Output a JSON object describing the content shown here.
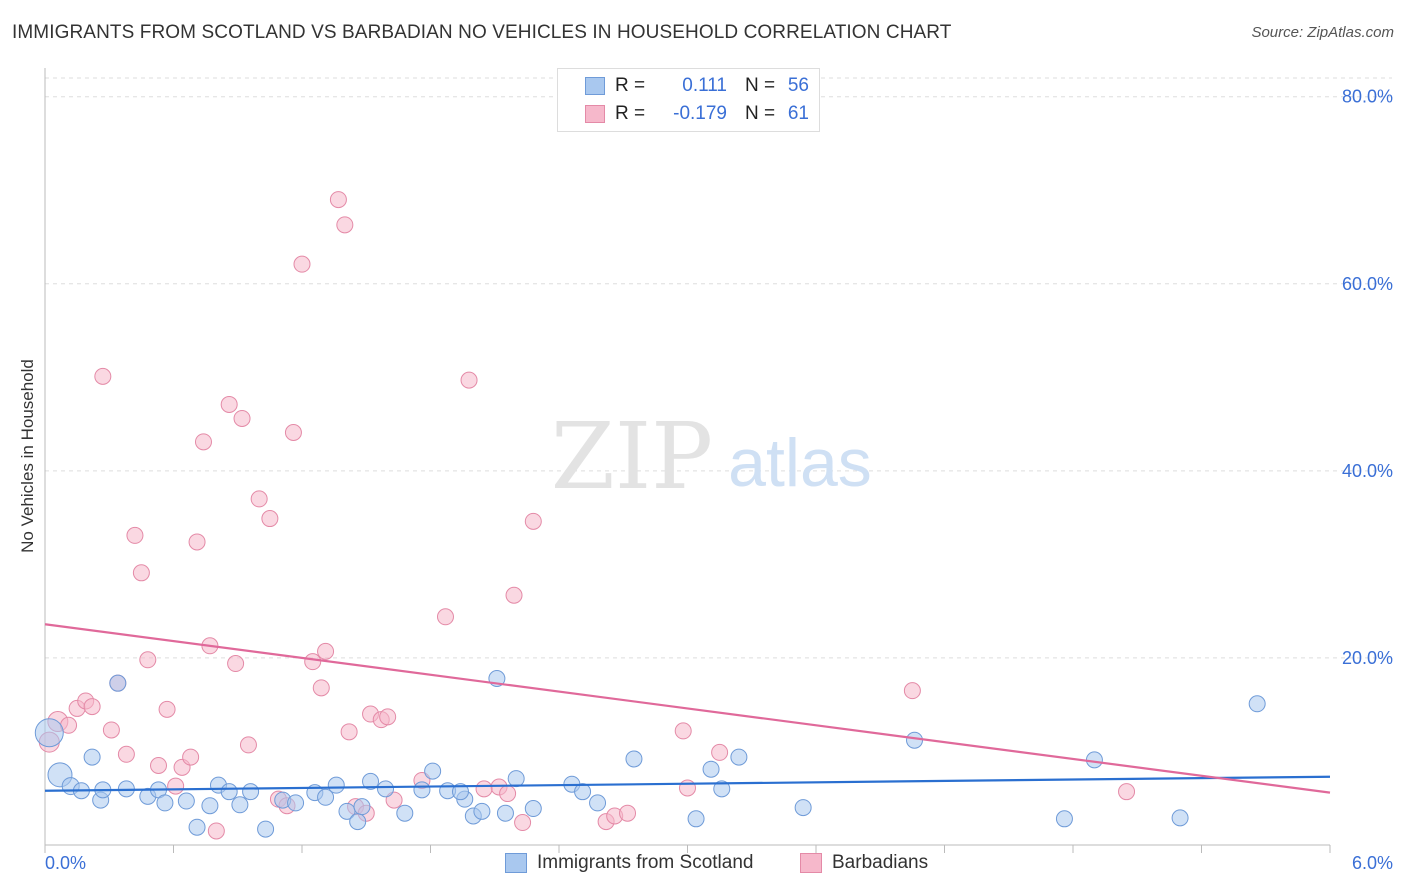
{
  "title": "IMMIGRANTS FROM SCOTLAND VS BARBADIAN NO VEHICLES IN HOUSEHOLD CORRELATION CHART",
  "source": "Source: ZipAtlas.com",
  "watermark": {
    "zip": "ZIP",
    "atlas": "atlas"
  },
  "legend_top": [
    {
      "r_label": "R =",
      "r_value": "0.111",
      "n_label": "N =",
      "n_value": "56"
    },
    {
      "r_label": "R =",
      "r_value": "-0.179",
      "n_label": "N =",
      "n_value": "61"
    }
  ],
  "legend_bottom": [
    "Immigrants from Scotland",
    "Barbadians"
  ],
  "colors": {
    "blue_fill": "#a9c8ef",
    "blue_stroke": "#6f9bd8",
    "blue_line": "#2a6fd0",
    "pink_fill": "#f6b8cb",
    "pink_stroke": "#e48aa7",
    "pink_line": "#e0699a",
    "tick_text": "#3a6fd6",
    "grid": "#dddddd"
  },
  "chart_data": {
    "type": "scatter",
    "title": "IMMIGRANTS FROM SCOTLAND VS BARBADIAN NO VEHICLES IN HOUSEHOLD CORRELATION CHART",
    "xlabel": "",
    "ylabel": "No Vehicles in Household",
    "xlim": [
      0,
      6.0
    ],
    "ylim": [
      0,
      82
    ],
    "x_tick_labels": [
      "0.0%",
      "6.0%"
    ],
    "y_ticks": [
      20,
      40,
      60,
      80
    ],
    "y_tick_labels": [
      "20.0%",
      "40.0%",
      "60.0%",
      "80.0%"
    ],
    "series": [
      {
        "name": "Immigrants from Scotland",
        "color": "blue",
        "trend": [
          [
            0,
            5.8
          ],
          [
            6.0,
            7.3
          ]
        ],
        "points": [
          [
            0.02,
            12.0,
            24
          ],
          [
            0.07,
            7.5,
            20
          ],
          [
            0.12,
            6.3,
            13
          ],
          [
            0.17,
            5.8,
            12
          ],
          [
            0.22,
            9.4,
            12
          ],
          [
            0.26,
            4.8,
            12
          ],
          [
            0.27,
            5.9,
            12
          ],
          [
            0.38,
            6.0,
            12
          ],
          [
            0.34,
            17.3,
            12
          ],
          [
            0.48,
            5.2,
            12
          ],
          [
            0.53,
            5.9,
            12
          ],
          [
            0.56,
            4.5,
            12
          ],
          [
            0.66,
            4.7,
            12
          ],
          [
            0.71,
            1.9,
            12
          ],
          [
            0.77,
            4.2,
            12
          ],
          [
            0.81,
            6.4,
            12
          ],
          [
            0.86,
            5.7,
            12
          ],
          [
            0.91,
            4.3,
            12
          ],
          [
            0.96,
            5.7,
            12
          ],
          [
            1.03,
            1.7,
            12
          ],
          [
            1.11,
            4.8,
            12
          ],
          [
            1.17,
            4.5,
            12
          ],
          [
            1.26,
            5.6,
            12
          ],
          [
            1.31,
            5.1,
            12
          ],
          [
            1.36,
            6.4,
            12
          ],
          [
            1.41,
            3.6,
            12
          ],
          [
            1.46,
            2.5,
            12
          ],
          [
            1.48,
            4.1,
            12
          ],
          [
            1.52,
            6.8,
            12
          ],
          [
            1.59,
            6.0,
            12
          ],
          [
            1.68,
            3.4,
            12
          ],
          [
            1.76,
            5.9,
            12
          ],
          [
            1.81,
            7.9,
            12
          ],
          [
            1.88,
            5.8,
            12
          ],
          [
            1.96,
            4.9,
            12
          ],
          [
            2.0,
            3.1,
            12
          ],
          [
            2.04,
            3.6,
            12
          ],
          [
            2.11,
            17.8,
            12
          ],
          [
            2.15,
            3.4,
            12
          ],
          [
            2.2,
            7.1,
            12
          ],
          [
            2.28,
            3.9,
            12
          ],
          [
            2.46,
            6.5,
            12
          ],
          [
            2.51,
            5.7,
            12
          ],
          [
            2.58,
            4.5,
            12
          ],
          [
            2.75,
            9.2,
            12
          ],
          [
            3.04,
            2.8,
            12
          ],
          [
            3.11,
            8.1,
            12
          ],
          [
            3.16,
            6.0,
            12
          ],
          [
            3.24,
            9.4,
            12
          ],
          [
            3.54,
            4.0,
            12
          ],
          [
            4.06,
            11.2,
            12
          ],
          [
            4.76,
            2.8,
            12
          ],
          [
            4.9,
            9.1,
            12
          ],
          [
            5.66,
            15.1,
            12
          ],
          [
            5.3,
            2.9,
            12
          ],
          [
            1.94,
            5.7,
            12
          ]
        ]
      },
      {
        "name": "Barbadians",
        "color": "pink",
        "trend": [
          [
            0,
            23.6
          ],
          [
            6.0,
            5.6
          ]
        ],
        "points": [
          [
            0.02,
            11.0,
            16
          ],
          [
            0.06,
            13.2,
            16
          ],
          [
            0.11,
            12.8,
            12
          ],
          [
            0.15,
            14.6,
            12
          ],
          [
            0.19,
            15.4,
            12
          ],
          [
            0.22,
            14.8,
            12
          ],
          [
            0.27,
            50.1,
            12
          ],
          [
            0.31,
            12.3,
            12
          ],
          [
            0.34,
            17.3,
            12
          ],
          [
            0.38,
            9.7,
            12
          ],
          [
            0.42,
            33.1,
            12
          ],
          [
            0.45,
            29.1,
            12
          ],
          [
            0.48,
            19.8,
            12
          ],
          [
            0.53,
            8.5,
            12
          ],
          [
            0.57,
            14.5,
            12
          ],
          [
            0.61,
            6.3,
            12
          ],
          [
            0.64,
            8.3,
            12
          ],
          [
            0.68,
            9.4,
            12
          ],
          [
            0.71,
            32.4,
            12
          ],
          [
            0.74,
            43.1,
            12
          ],
          [
            0.77,
            21.3,
            12
          ],
          [
            0.8,
            1.5,
            12
          ],
          [
            0.86,
            47.1,
            12
          ],
          [
            0.89,
            19.4,
            12
          ],
          [
            0.92,
            45.6,
            12
          ],
          [
            0.95,
            10.7,
            12
          ],
          [
            1.0,
            37.0,
            12
          ],
          [
            1.05,
            34.9,
            12
          ],
          [
            1.09,
            4.9,
            12
          ],
          [
            1.13,
            4.2,
            12
          ],
          [
            1.16,
            44.1,
            12
          ],
          [
            1.2,
            62.1,
            12
          ],
          [
            1.25,
            19.6,
            12
          ],
          [
            1.29,
            16.8,
            12
          ],
          [
            1.31,
            20.7,
            12
          ],
          [
            1.37,
            69.0,
            12
          ],
          [
            1.4,
            66.3,
            12
          ],
          [
            1.42,
            12.1,
            12
          ],
          [
            1.45,
            4.1,
            12
          ],
          [
            1.5,
            3.4,
            12
          ],
          [
            1.52,
            14.0,
            12
          ],
          [
            1.57,
            13.4,
            12
          ],
          [
            1.6,
            13.7,
            12
          ],
          [
            1.63,
            4.8,
            12
          ],
          [
            1.76,
            6.9,
            12
          ],
          [
            1.87,
            24.4,
            12
          ],
          [
            1.98,
            49.7,
            12
          ],
          [
            2.12,
            6.2,
            12
          ],
          [
            2.16,
            5.5,
            12
          ],
          [
            2.19,
            26.7,
            12
          ],
          [
            2.23,
            2.4,
            12
          ],
          [
            2.28,
            34.6,
            12
          ],
          [
            2.62,
            2.5,
            12
          ],
          [
            2.66,
            3.1,
            12
          ],
          [
            2.72,
            3.4,
            12
          ],
          [
            2.98,
            12.2,
            12
          ],
          [
            3.0,
            6.1,
            12
          ],
          [
            3.15,
            9.9,
            12
          ],
          [
            4.05,
            16.5,
            12
          ],
          [
            5.05,
            5.7,
            12
          ],
          [
            2.05,
            6.0,
            12
          ]
        ]
      }
    ]
  }
}
